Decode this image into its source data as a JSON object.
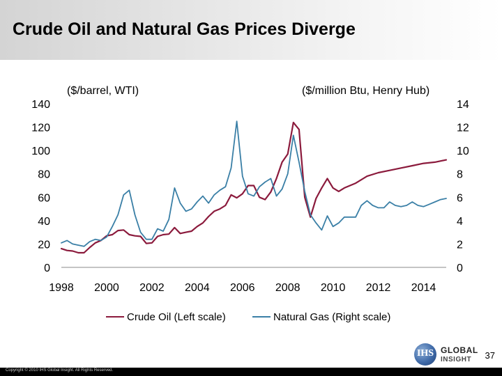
{
  "slide": {
    "title": "Crude Oil and Natural Gas Prices Diverge",
    "page_number": "37",
    "copyright": "Copyright © 2010 IHS Global Insight. All Rights Reserved."
  },
  "logo": {
    "mark": "IHS",
    "line1": "GLOBAL",
    "line2": "INSIGHT"
  },
  "colors": {
    "crude_oil": "#8b1a3c",
    "natural_gas": "#3a7fa6"
  },
  "chart_data": {
    "type": "line",
    "left_axis_label": "($/barrel, WTI)",
    "right_axis_label": "($/million Btu, Henry Hub)",
    "left_ylim": [
      0,
      140
    ],
    "left_yticks": [
      "0",
      "20",
      "40",
      "60",
      "80",
      "100",
      "120",
      "140"
    ],
    "right_ylim": [
      0,
      14
    ],
    "right_yticks": [
      "0",
      "2",
      "4",
      "6",
      "8",
      "10",
      "12",
      "14"
    ],
    "xlim": [
      1998,
      2015
    ],
    "xticks": [
      "1998",
      "2000",
      "2002",
      "2004",
      "2006",
      "2008",
      "2010",
      "2012",
      "2014"
    ],
    "grid": false,
    "legend_position": "bottom",
    "series": [
      {
        "name": "Crude Oil (Left scale)",
        "axis": "left",
        "color": "#8b1a3c",
        "x": [
          1998,
          1998.25,
          1998.5,
          1998.75,
          1999,
          1999.25,
          1999.5,
          1999.75,
          2000,
          2000.25,
          2000.5,
          2000.75,
          2001,
          2001.25,
          2001.5,
          2001.75,
          2002,
          2002.25,
          2002.5,
          2002.75,
          2003,
          2003.25,
          2003.5,
          2003.75,
          2004,
          2004.25,
          2004.5,
          2004.75,
          2005,
          2005.25,
          2005.5,
          2005.75,
          2006,
          2006.25,
          2006.5,
          2006.75,
          2007,
          2007.25,
          2007.5,
          2007.75,
          2008,
          2008.25,
          2008.5,
          2008.75,
          2009,
          2009.25,
          2009.5,
          2009.75,
          2010,
          2010.25,
          2010.5,
          2011,
          2011.5,
          2012,
          2012.5,
          2013,
          2013.5,
          2014,
          2014.5,
          2015
        ],
        "y": [
          16,
          14.5,
          14,
          12.5,
          12.5,
          17,
          21,
          23,
          27,
          28,
          31.5,
          32,
          28,
          27,
          26.5,
          20.5,
          21,
          26.5,
          28,
          28.5,
          34,
          29,
          30,
          31,
          35,
          38,
          43.5,
          48,
          50,
          53,
          62,
          59.5,
          63,
          70,
          70,
          60,
          58,
          64.5,
          76,
          90,
          97,
          124,
          118,
          60,
          43,
          59,
          68,
          76,
          68,
          65,
          68,
          72,
          78,
          81,
          83,
          85,
          87,
          89,
          90,
          92
        ]
      },
      {
        "name": "Natural Gas (Right scale)",
        "axis": "right",
        "color": "#3a7fa6",
        "x": [
          1998,
          1998.25,
          1998.5,
          1998.75,
          1999,
          1999.25,
          1999.5,
          1999.75,
          2000,
          2000.25,
          2000.5,
          2000.75,
          2001,
          2001.25,
          2001.5,
          2001.75,
          2002,
          2002.25,
          2002.5,
          2002.75,
          2003,
          2003.25,
          2003.5,
          2003.75,
          2004,
          2004.25,
          2004.5,
          2004.75,
          2005,
          2005.25,
          2005.5,
          2005.75,
          2006,
          2006.25,
          2006.5,
          2006.75,
          2007,
          2007.25,
          2007.5,
          2007.75,
          2008,
          2008.25,
          2008.5,
          2008.75,
          2009,
          2009.25,
          2009.5,
          2009.75,
          2010,
          2010.25,
          2010.5,
          2010.75,
          2011,
          2011.25,
          2011.5,
          2011.75,
          2012,
          2012.25,
          2012.5,
          2012.75,
          2013,
          2013.25,
          2013.5,
          2013.75,
          2014,
          2014.25,
          2014.5,
          2014.75,
          2015
        ],
        "y": [
          2.1,
          2.3,
          2.0,
          1.9,
          1.8,
          2.2,
          2.4,
          2.3,
          2.6,
          3.5,
          4.5,
          6.2,
          6.6,
          4.5,
          3.0,
          2.4,
          2.4,
          3.3,
          3.1,
          4.1,
          6.8,
          5.5,
          4.8,
          5.0,
          5.6,
          6.1,
          5.5,
          6.2,
          6.6,
          6.9,
          8.5,
          12.5,
          7.8,
          6.3,
          6.1,
          6.9,
          7.3,
          7.6,
          6.1,
          6.7,
          8.0,
          11.3,
          9.0,
          6.5,
          4.5,
          3.8,
          3.2,
          4.4,
          3.5,
          3.8,
          4.3,
          4.3,
          4.3,
          5.3,
          5.7,
          5.3,
          5.1,
          5.1,
          5.6,
          5.3,
          5.2,
          5.3,
          5.6,
          5.3,
          5.2,
          5.4,
          5.6,
          5.8,
          5.9
        ]
      }
    ]
  }
}
